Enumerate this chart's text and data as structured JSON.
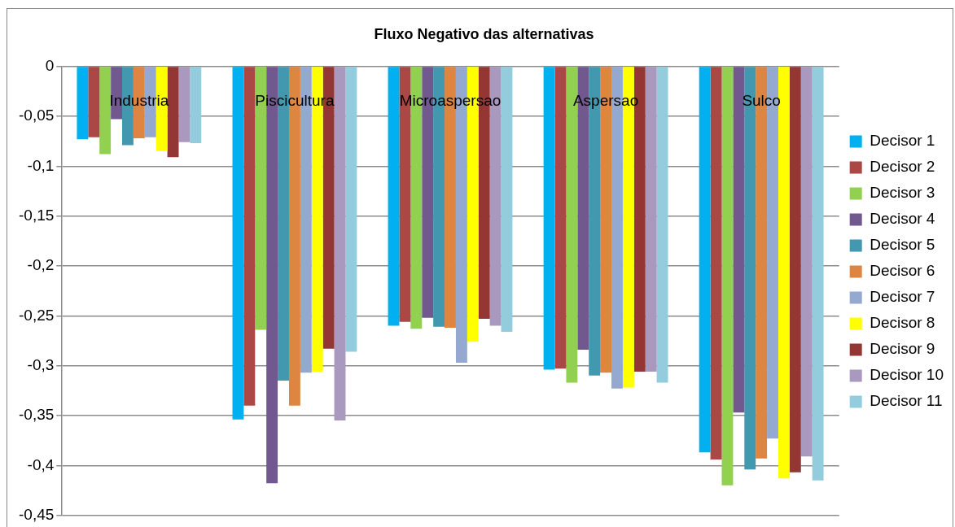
{
  "chart_data": {
    "type": "bar",
    "title": "Fluxo Negativo das alternativas",
    "categories": [
      "Industria",
      "Piscicultura",
      "Microaspersao",
      "Aspersao",
      "Sulco"
    ],
    "series": [
      {
        "name": "Decisor 1",
        "color": "#00b0f0",
        "values": [
          -0.073,
          -0.354,
          -0.26,
          -0.304,
          -0.387
        ]
      },
      {
        "name": "Decisor 2",
        "color": "#ab4744",
        "values": [
          -0.071,
          -0.34,
          -0.256,
          -0.303,
          -0.394
        ]
      },
      {
        "name": "Decisor 3",
        "color": "#92d050",
        "values": [
          -0.088,
          -0.264,
          -0.263,
          -0.317,
          -0.42
        ]
      },
      {
        "name": "Decisor 4",
        "color": "#71588f",
        "values": [
          -0.053,
          -0.418,
          -0.252,
          -0.284,
          -0.347
        ]
      },
      {
        "name": "Decisor 5",
        "color": "#4198af",
        "values": [
          -0.079,
          -0.315,
          -0.261,
          -0.31,
          -0.404
        ]
      },
      {
        "name": "Decisor 6",
        "color": "#dd8541",
        "values": [
          -0.072,
          -0.34,
          -0.262,
          -0.307,
          -0.393
        ]
      },
      {
        "name": "Decisor 7",
        "color": "#95a9d0",
        "values": [
          -0.071,
          -0.307,
          -0.297,
          -0.323,
          -0.373
        ]
      },
      {
        "name": "Decisor 8",
        "color": "#ffff00",
        "values": [
          -0.085,
          -0.306,
          -0.276,
          -0.322,
          -0.413
        ]
      },
      {
        "name": "Decisor 9",
        "color": "#943634",
        "values": [
          -0.091,
          -0.283,
          -0.253,
          -0.306,
          -0.407
        ]
      },
      {
        "name": "Decisor 10",
        "color": "#aa99bf",
        "values": [
          -0.076,
          -0.355,
          -0.26,
          -0.306,
          -0.391
        ]
      },
      {
        "name": "Decisor 11",
        "color": "#93cddd",
        "values": [
          -0.077,
          -0.286,
          -0.266,
          -0.317,
          -0.415
        ]
      }
    ],
    "ylim": [
      -0.45,
      0
    ],
    "yticks": [
      {
        "value": 0,
        "label": "0"
      },
      {
        "value": -0.05,
        "label": "-0,05"
      },
      {
        "value": -0.1,
        "label": "-0,1"
      },
      {
        "value": -0.15,
        "label": "-0,15"
      },
      {
        "value": -0.2,
        "label": "-0,2"
      },
      {
        "value": -0.25,
        "label": "-0,25"
      },
      {
        "value": -0.3,
        "label": "-0,3"
      },
      {
        "value": -0.35,
        "label": "-0,35"
      },
      {
        "value": -0.4,
        "label": "-0,4"
      },
      {
        "value": -0.45,
        "label": "-0,45"
      }
    ],
    "grid": "y",
    "legend": "right"
  }
}
